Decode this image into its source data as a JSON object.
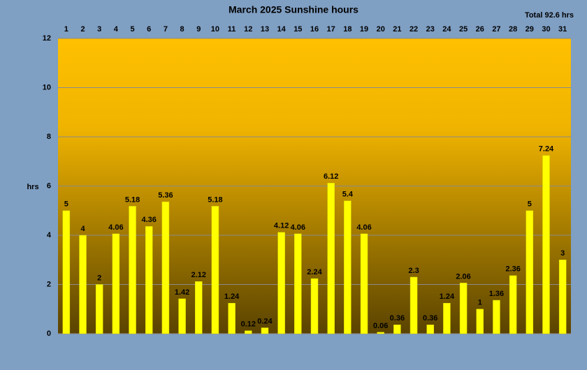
{
  "chart_data": {
    "type": "bar",
    "title": "March 2025 Sunshine hours",
    "annotation": "Total 92.6 hrs",
    "ylabel": "hrs",
    "categories": [
      "1",
      "2",
      "3",
      "4",
      "5",
      "6",
      "7",
      "8",
      "9",
      "10",
      "11",
      "12",
      "13",
      "14",
      "15",
      "16",
      "17",
      "18",
      "19",
      "20",
      "21",
      "22",
      "23",
      "24",
      "25",
      "26",
      "27",
      "28",
      "29",
      "30",
      "31"
    ],
    "values": [
      5,
      4,
      2,
      4.06,
      5.18,
      4.36,
      5.36,
      1.42,
      2.12,
      5.18,
      1.24,
      0.12,
      0.24,
      4.12,
      4.06,
      2.24,
      6.12,
      5.4,
      4.06,
      0.06,
      0.36,
      2.3,
      0.36,
      1.24,
      2.06,
      1,
      1.36,
      2.36,
      5,
      7.24,
      3
    ],
    "color": "#ffff00",
    "ylim": [
      0,
      12
    ],
    "yticks": [
      0,
      2,
      4,
      6,
      8,
      10,
      12
    ],
    "grid": true
  }
}
